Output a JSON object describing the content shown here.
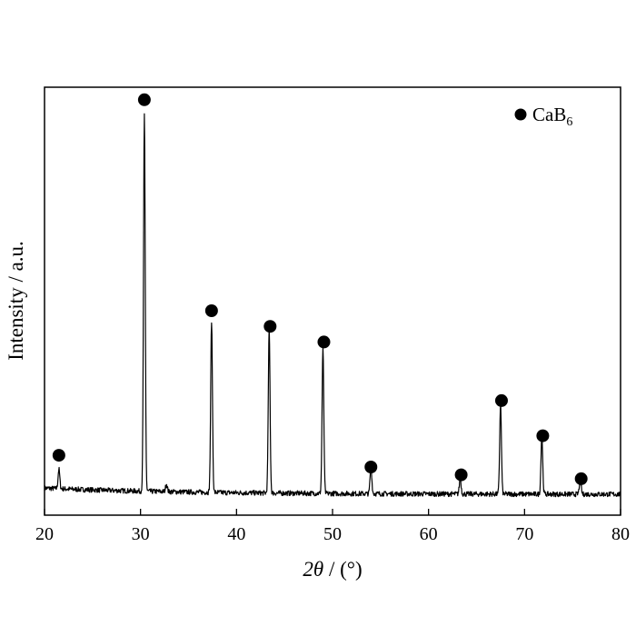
{
  "chart_data": {
    "type": "line",
    "xlabel_symbol": "2θ",
    "xlabel_unit": " / (°)",
    "ylabel": "Intensity / a.u.",
    "xlim": [
      20,
      80
    ],
    "ylim": [
      0,
      100
    ],
    "x_ticks": [
      20,
      30,
      40,
      50,
      60,
      70,
      80
    ],
    "grid": false,
    "legend_position": "top-right",
    "legend": {
      "marker": "filled-circle",
      "label_main": "CaB",
      "label_sub": "6"
    },
    "series": [
      {
        "name": "CaB6",
        "baseline": 3,
        "peaks": [
          {
            "x": 21.5,
            "height": 5
          },
          {
            "x": 30.4,
            "height": 96
          },
          {
            "x": 32.7,
            "height": 2
          },
          {
            "x": 37.4,
            "height": 44
          },
          {
            "x": 43.4,
            "height": 42
          },
          {
            "x": 49.0,
            "height": 37
          },
          {
            "x": 54.0,
            "height": 7
          },
          {
            "x": 63.3,
            "height": 4
          },
          {
            "x": 67.5,
            "height": 23
          },
          {
            "x": 71.8,
            "height": 15
          },
          {
            "x": 75.8,
            "height": 4
          }
        ]
      }
    ],
    "markers": [
      {
        "x": 21.5,
        "y": 13
      },
      {
        "x": 30.4,
        "y": 104
      },
      {
        "x": 37.4,
        "y": 50
      },
      {
        "x": 43.5,
        "y": 46
      },
      {
        "x": 49.1,
        "y": 42
      },
      {
        "x": 54.0,
        "y": 10
      },
      {
        "x": 63.4,
        "y": 8
      },
      {
        "x": 67.6,
        "y": 27
      },
      {
        "x": 71.9,
        "y": 18
      },
      {
        "x": 75.9,
        "y": 7
      }
    ]
  }
}
